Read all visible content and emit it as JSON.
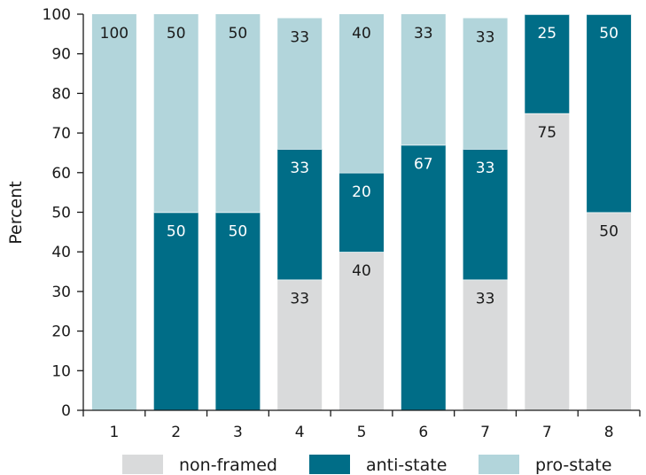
{
  "chart_data": {
    "type": "bar",
    "stacked": true,
    "categories": [
      "1",
      "2",
      "3",
      "4",
      "5",
      "6",
      "7",
      "7",
      "8"
    ],
    "ylabel": "Percent",
    "xlabel": "",
    "ylim": [
      0,
      100
    ],
    "yticks": [
      "0",
      "10",
      "20",
      "30",
      "40",
      "50",
      "60",
      "70",
      "80",
      "90",
      "100"
    ],
    "grid": false,
    "legend_position": "bottom",
    "series": [
      {
        "name": "non-framed",
        "color": "#d9dadb",
        "label_color": "#1a1a1a",
        "values": [
          0,
          0,
          0,
          33,
          40,
          0,
          33,
          75,
          50
        ],
        "labels": [
          "",
          "",
          "",
          "33",
          "40",
          "",
          "33",
          "75",
          "50"
        ]
      },
      {
        "name": "anti-state",
        "color": "#006d87",
        "label_color": "#ffffff",
        "values": [
          0,
          50,
          50,
          33,
          20,
          67,
          33,
          25,
          50
        ],
        "labels": [
          "",
          "50",
          "50",
          "33",
          "20",
          "67",
          "33",
          "25",
          "50"
        ]
      },
      {
        "name": "pro-state",
        "color": "#b2d5db",
        "label_color": "#1a1a1a",
        "values": [
          100,
          50,
          50,
          33,
          40,
          33,
          33,
          0,
          0
        ],
        "labels": [
          "100",
          "50",
          "50",
          "33",
          "40",
          "33",
          "33",
          "",
          ""
        ]
      }
    ]
  }
}
